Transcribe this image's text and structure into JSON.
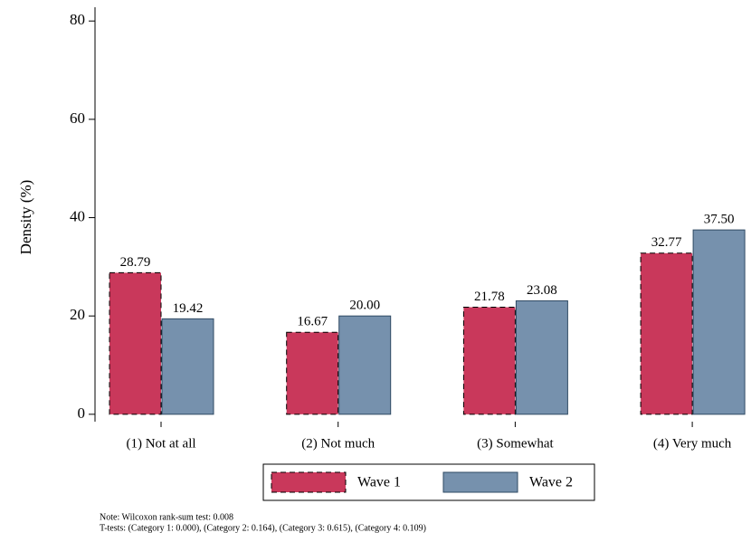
{
  "chart_data": {
    "type": "bar",
    "y_label": "Density (%)",
    "categories": [
      "(1) Not at all",
      "(2) Not much",
      "(3) Somewhat",
      "(4) Very much"
    ],
    "series": [
      {
        "name": "Wave 1",
        "color": "#c9385b",
        "border": "dashed",
        "values": [
          28.79,
          16.67,
          21.78,
          32.77
        ],
        "value_labels": [
          "28.79",
          "16.67",
          "21.78",
          "32.77"
        ]
      },
      {
        "name": "Wave 2",
        "color": "#7691ad",
        "border": "solid",
        "values": [
          19.42,
          20,
          23.08,
          37.5
        ],
        "value_labels": [
          "19.42",
          "20.00",
          "23.08",
          "37.50"
        ]
      }
    ],
    "ylim": [
      -1.5,
      82.8
    ],
    "yticks": [
      0,
      20,
      40,
      60,
      80
    ],
    "grid": false,
    "notes": [
      "Note: Wilcoxon rank-sum test: 0.008",
      "T-tests: (Category 1:  0.000), (Category 2:  0.164), (Category 3:  0.615), (Category 4:  0.109)"
    ]
  }
}
